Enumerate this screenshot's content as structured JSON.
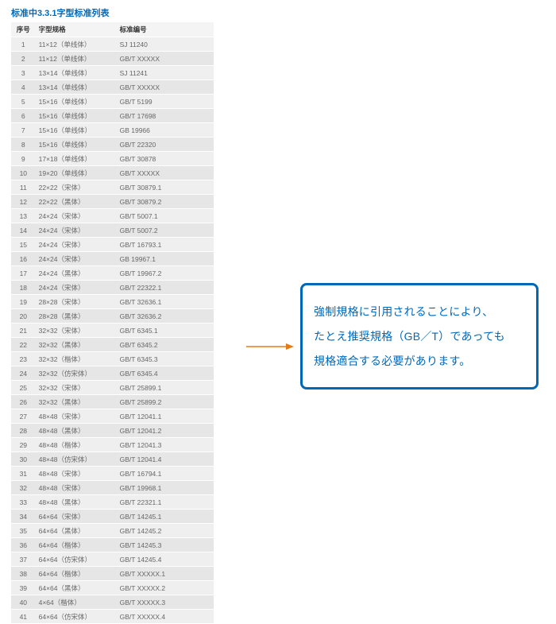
{
  "title": "标准中3.3.1字型标准列表",
  "columns": {
    "seq": "序号",
    "spec": "字型规格",
    "code": "标准编号"
  },
  "rows": [
    {
      "seq": "1",
      "spec": "11×12（单线体）",
      "code": "SJ  11240"
    },
    {
      "seq": "2",
      "spec": "11×12（单线体）",
      "code": "GB/T  XXXXX"
    },
    {
      "seq": "3",
      "spec": "13×14（单线体）",
      "code": "SJ  11241"
    },
    {
      "seq": "4",
      "spec": "13×14（单线体）",
      "code": "GB/T  XXXXX"
    },
    {
      "seq": "5",
      "spec": "15×16（单线体）",
      "code": "GB/T  5199"
    },
    {
      "seq": "6",
      "spec": "15×16（单线体）",
      "code": "GB/T  17698"
    },
    {
      "seq": "7",
      "spec": "15×16（单线体）",
      "code": "GB  19966"
    },
    {
      "seq": "8",
      "spec": "15×16（单线体）",
      "code": "GB/T  22320"
    },
    {
      "seq": "9",
      "spec": "17×18（单线体）",
      "code": "GB/T  30878"
    },
    {
      "seq": "10",
      "spec": "19×20（单线体）",
      "code": "GB/T  XXXXX"
    },
    {
      "seq": "11",
      "spec": "22×22（宋体）",
      "code": "GB/T  30879.1"
    },
    {
      "seq": "12",
      "spec": "22×22（黑体）",
      "code": "GB/T  30879.2"
    },
    {
      "seq": "13",
      "spec": "24×24（宋体）",
      "code": "GB/T  5007.1"
    },
    {
      "seq": "14",
      "spec": "24×24（宋体）",
      "code": "GB/T  5007.2"
    },
    {
      "seq": "15",
      "spec": "24×24（宋体）",
      "code": "GB/T  16793.1"
    },
    {
      "seq": "16",
      "spec": "24×24（宋体）",
      "code": "GB  19967.1"
    },
    {
      "seq": "17",
      "spec": "24×24（黑体）",
      "code": "GB/T  19967.2"
    },
    {
      "seq": "18",
      "spec": "24×24（宋体）",
      "code": "GB/T  22322.1"
    },
    {
      "seq": "19",
      "spec": "28×28（宋体）",
      "code": "GB/T  32636.1"
    },
    {
      "seq": "20",
      "spec": "28×28（黑体）",
      "code": "GB/T  32636.2"
    },
    {
      "seq": "21",
      "spec": "32×32（宋体）",
      "code": "GB/T  6345.1"
    },
    {
      "seq": "22",
      "spec": "32×32（黑体）",
      "code": "GB/T  6345.2"
    },
    {
      "seq": "23",
      "spec": "32×32（楷体）",
      "code": "GB/T  6345.3"
    },
    {
      "seq": "24",
      "spec": "32×32（仿宋体）",
      "code": "GB/T  6345.4"
    },
    {
      "seq": "25",
      "spec": "32×32（宋体）",
      "code": "GB/T  25899.1"
    },
    {
      "seq": "26",
      "spec": "32×32（黑体）",
      "code": "GB/T  25899.2"
    },
    {
      "seq": "27",
      "spec": "48×48（宋体）",
      "code": "GB/T  12041.1"
    },
    {
      "seq": "28",
      "spec": "48×48（黑体）",
      "code": "GB/T  12041.2"
    },
    {
      "seq": "29",
      "spec": "48×48（楷体）",
      "code": "GB/T  12041.3"
    },
    {
      "seq": "30",
      "spec": "48×48（仿宋体）",
      "code": "GB/T  12041.4"
    },
    {
      "seq": "31",
      "spec": "48×48（宋体）",
      "code": "GB/T  16794.1"
    },
    {
      "seq": "32",
      "spec": "48×48（宋体）",
      "code": "GB/T  19968.1"
    },
    {
      "seq": "33",
      "spec": "48×48（黑体）",
      "code": "GB/T  22321.1"
    },
    {
      "seq": "34",
      "spec": "64×64（宋体）",
      "code": "GB/T  14245.1"
    },
    {
      "seq": "35",
      "spec": "64×64（黑体）",
      "code": "GB/T  14245.2"
    },
    {
      "seq": "36",
      "spec": "64×64（楷体）",
      "code": "GB/T  14245.3"
    },
    {
      "seq": "37",
      "spec": "64×64（仿宋体）",
      "code": "GB/T  14245.4"
    },
    {
      "seq": "38",
      "spec": "64×64（楷体）",
      "code": "GB/T  XXXXX.1"
    },
    {
      "seq": "39",
      "spec": "64×64（黑体）",
      "code": "GB/T  XXXXX.2"
    },
    {
      "seq": "40",
      "spec": "4×64（楷体）",
      "code": "GB/T  XXXXX.3"
    },
    {
      "seq": "41",
      "spec": "64×64（仿宋体）",
      "code": "GB/T  XXXXX.4"
    }
  ],
  "callout": {
    "line1": "強制規格に引用されることにより、",
    "line2": "たとえ推奨規格（GB／T）であっても",
    "line3": "規格適合する必要があります。"
  },
  "style": {
    "title_color": "#0068b7",
    "callout_border": "#0068b7",
    "callout_text": "#0068b7",
    "arrow_color": "#e67a17",
    "row_odd_bg": "#efefef",
    "row_even_bg": "#e6e6e6",
    "text_color": "#666666"
  }
}
